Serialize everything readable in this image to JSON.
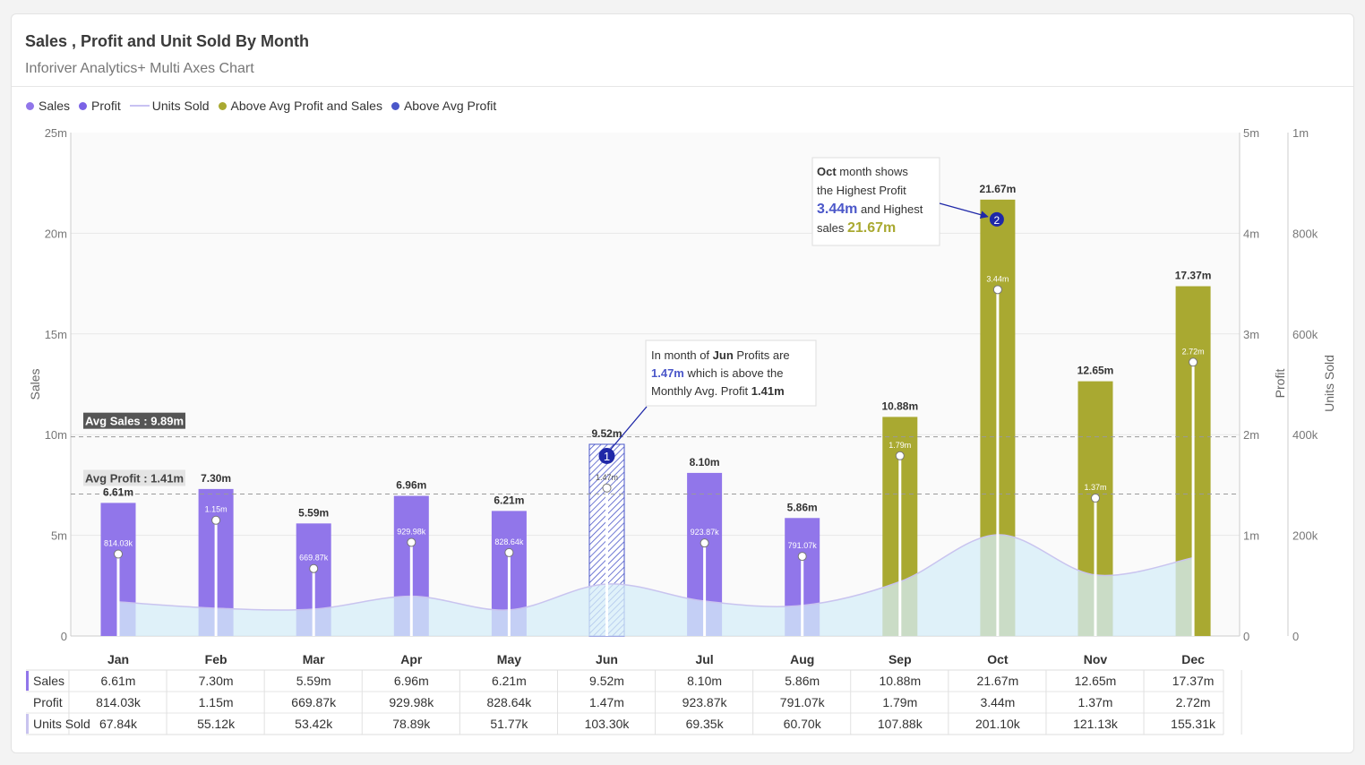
{
  "header": {
    "title": "Sales , Profit and Unit Sold By Month",
    "subtitle": "Inforiver Analytics+ Multi Axes Chart"
  },
  "legend": [
    {
      "label": "Sales",
      "color": "#9176ea",
      "kind": "dot"
    },
    {
      "label": "Profit",
      "color": "#7b63e6",
      "kind": "dot"
    },
    {
      "label": "Units Sold",
      "color": "#c8c2f2",
      "kind": "line"
    },
    {
      "label": "Above Avg Profit and Sales",
      "color": "#a9a931",
      "kind": "dot"
    },
    {
      "label": "Above Avg Profit",
      "color": "#4b57c9",
      "kind": "dot"
    }
  ],
  "colors": {
    "sales": "#9176ea",
    "above_both": "#a9a931",
    "above_profit": "#4b57c9",
    "units_fill": "#d6eef8",
    "units_line": "#c9c4ef"
  },
  "chart_data": {
    "type": "bar",
    "categories": [
      "Jan",
      "Feb",
      "Mar",
      "Apr",
      "May",
      "Jun",
      "Jul",
      "Aug",
      "Sep",
      "Oct",
      "Nov",
      "Dec"
    ],
    "series": [
      {
        "name": "Sales",
        "axis": "left",
        "values": [
          6.61,
          7.3,
          5.59,
          6.96,
          6.21,
          9.52,
          8.1,
          5.86,
          10.88,
          21.67,
          12.65,
          17.37
        ],
        "labels": [
          "6.61m",
          "7.30m",
          "5.59m",
          "6.96m",
          "6.21m",
          "9.52m",
          "8.10m",
          "5.86m",
          "10.88m",
          "21.67m",
          "12.65m",
          "17.37m"
        ]
      },
      {
        "name": "Profit",
        "axis": "right",
        "values": [
          0.81403,
          1.15,
          0.66987,
          0.92998,
          0.82864,
          1.47,
          0.92387,
          0.79107,
          1.79,
          3.44,
          1.37,
          2.72
        ],
        "labels": [
          "814.03k",
          "1.15m",
          "669.87k",
          "929.98k",
          "828.64k",
          "1.47m",
          "923.87k",
          "791.07k",
          "1.79m",
          "3.44m",
          "1.37m",
          "2.72m"
        ]
      },
      {
        "name": "Units Sold",
        "axis": "right2",
        "values": [
          67.84,
          55.12,
          53.42,
          78.89,
          51.77,
          103.3,
          69.35,
          60.7,
          107.88,
          201.1,
          121.13,
          155.31
        ],
        "labels": [
          "67.84k",
          "55.12k",
          "53.42k",
          "78.89k",
          "51.77k",
          "103.30k",
          "69.35k",
          "60.70k",
          "107.88k",
          "201.10k",
          "121.13k",
          "155.31k"
        ]
      }
    ],
    "categories_style": [
      "normal",
      "normal",
      "normal",
      "normal",
      "normal",
      "above_profit",
      "normal",
      "normal",
      "above_both",
      "above_both",
      "above_both",
      "above_both"
    ],
    "axes": {
      "left": {
        "label": "Sales",
        "ylim": [
          0,
          25
        ],
        "ticks": [
          "0",
          "5m",
          "10m",
          "15m",
          "20m",
          "25m"
        ]
      },
      "right": {
        "label": "Profit",
        "ylim": [
          0,
          5
        ],
        "ticks": [
          "0",
          "1m",
          "2m",
          "3m",
          "4m",
          "5m"
        ]
      },
      "right2": {
        "label": "Units Sold",
        "ylim": [
          0,
          1000
        ],
        "ticks": [
          "0",
          "200k",
          "400k",
          "600k",
          "800k",
          "1m"
        ]
      }
    },
    "reference_lines": [
      {
        "label": "Avg Sales : 9.89m",
        "value": 9.89,
        "axis": "left"
      },
      {
        "label": "Avg Profit : 1.41m",
        "value": 1.41,
        "axis": "right"
      }
    ],
    "annotations": [
      {
        "marker": "1",
        "category": "Jun",
        "parts": [
          {
            "t": "In month of ",
            "style": "n"
          },
          {
            "t": "Jun",
            "style": "b"
          },
          {
            "t": " Profits are",
            "style": "n"
          },
          {
            "t": "\n"
          },
          {
            "t": "1.47m",
            "style": "blue"
          },
          {
            "t": " which is above the",
            "style": "n"
          },
          {
            "t": "\n"
          },
          {
            "t": "Monthly Avg. Profit ",
            "style": "n"
          },
          {
            "t": "1.41m",
            "style": "b"
          }
        ]
      },
      {
        "marker": "2",
        "category": "Oct",
        "parts": [
          {
            "t": "Oct",
            "style": "b"
          },
          {
            "t": " month shows",
            "style": "n"
          },
          {
            "t": "\n"
          },
          {
            "t": "the Highest Profit",
            "style": "n"
          },
          {
            "t": "\n"
          },
          {
            "t": "3.44m",
            "style": "bigblue"
          },
          {
            "t": " and Highest",
            "style": "n"
          },
          {
            "t": "\n"
          },
          {
            "t": "sales ",
            "style": "n"
          },
          {
            "t": "21.67m",
            "style": "bigolive"
          }
        ]
      }
    ],
    "grid": true,
    "legend_position": "top-left"
  },
  "table": {
    "rows": [
      {
        "label": "Sales",
        "series": 0
      },
      {
        "label": "Profit",
        "series": 1
      },
      {
        "label": "Units Sold",
        "series": 2
      }
    ]
  }
}
